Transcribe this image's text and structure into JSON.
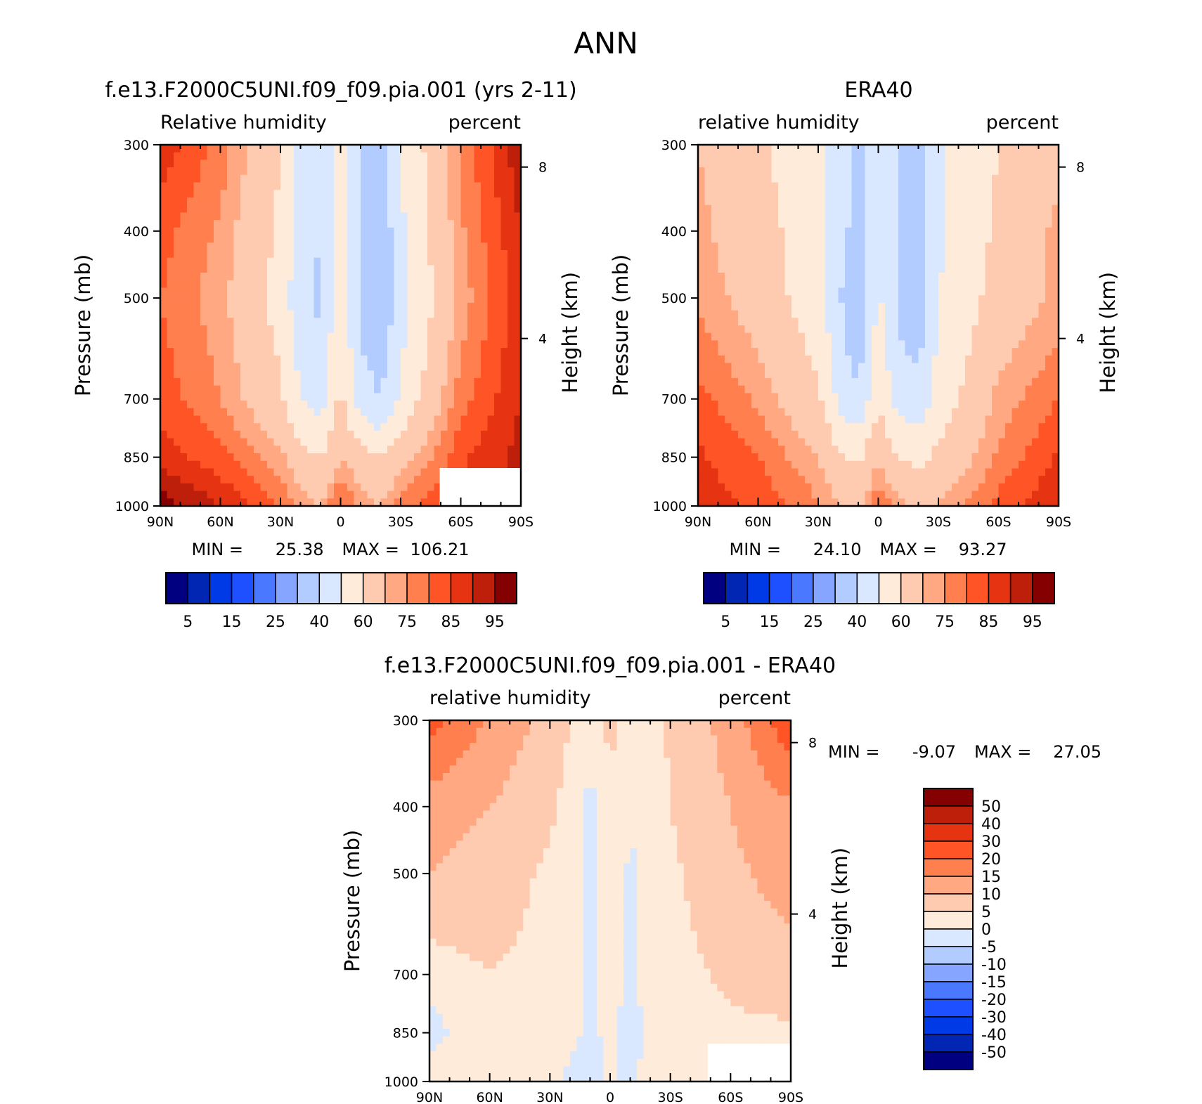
{
  "figure_title": "ANN",
  "colors": {
    "model_obs_levels": [
      "#000080",
      "#0026b3",
      "#0039e6",
      "#1f50ff",
      "#4a78ff",
      "#85a5ff",
      "#b3ccff",
      "#d9e8ff",
      "#ffebd9",
      "#ffcbb0",
      "#ffa882",
      "#ff7f4f",
      "#ff5526",
      "#e63311",
      "#bd1f0a",
      "#850000"
    ],
    "diff_levels": [
      "#000080",
      "#0026b3",
      "#0039e6",
      "#1f50ff",
      "#4a78ff",
      "#85a5ff",
      "#b3ccff",
      "#d9e8ff",
      "#ffebd9",
      "#ffcbb0",
      "#ffa882",
      "#ff7f4f",
      "#ff5526",
      "#e63311",
      "#bd1f0a",
      "#850000"
    ]
  },
  "chart_data": [
    {
      "type": "heatmap",
      "title": "f.e13.F2000C5UNI.f09_f09.pia.001 (yrs 2-11)",
      "left_label": "Relative humidity",
      "right_label": "percent",
      "ylabel": "Pressure (mb)",
      "ylabel_right": "Height (km)",
      "x_ticks": [
        "90N",
        "60N",
        "30N",
        "0",
        "30S",
        "60S",
        "90S"
      ],
      "y_ticks": [
        "300",
        "400",
        "500",
        "700",
        "850",
        "1000"
      ],
      "y_right_ticks": [
        "8",
        "4"
      ],
      "min_label": "MIN =",
      "min_value": "25.38",
      "max_label": "MAX =",
      "max_value": "106.21",
      "colorbar_labels": [
        "5",
        "15",
        "25",
        "40",
        "60",
        "75",
        "85",
        "95"
      ],
      "lat": [
        -90,
        -60,
        -30,
        -20,
        -10,
        0,
        10,
        20,
        30,
        60,
        90
      ],
      "pressure": [
        300,
        400,
        500,
        700,
        850,
        1000
      ],
      "values": [
        [
          88,
          78,
          60,
          48,
          42,
          57,
          40,
          34,
          50,
          76,
          94
        ],
        [
          82,
          74,
          58,
          45,
          40,
          57,
          38,
          32,
          48,
          74,
          90
        ],
        [
          80,
          72,
          56,
          43,
          38,
          58,
          37,
          30,
          46,
          72,
          88
        ],
        [
          83,
          75,
          62,
          50,
          46,
          62,
          45,
          40,
          52,
          78,
          90
        ],
        [
          88,
          82,
          72,
          64,
          60,
          70,
          64,
          60,
          66,
          84,
          92
        ],
        [
          98,
          90,
          80,
          74,
          70,
          82,
          74,
          70,
          78,
          86,
          90
        ]
      ]
    },
    {
      "type": "heatmap",
      "title": "ERA40",
      "left_label": "relative humidity",
      "right_label": "percent",
      "ylabel": "Pressure (mb)",
      "ylabel_right": "Height (km)",
      "x_ticks": [
        "90N",
        "60N",
        "30N",
        "0",
        "30S",
        "60S",
        "90S"
      ],
      "y_ticks": [
        "300",
        "400",
        "500",
        "700",
        "850",
        "1000"
      ],
      "y_right_ticks": [
        "8",
        "4"
      ],
      "min_label": "MIN =",
      "min_value": "24.10",
      "max_label": "MAX =",
      "max_value": "93.27",
      "colorbar_labels": [
        "5",
        "15",
        "25",
        "40",
        "60",
        "75",
        "85",
        "95"
      ],
      "lat": [
        -90,
        -60,
        -30,
        -20,
        -10,
        0,
        10,
        20,
        30,
        60,
        90
      ],
      "pressure": [
        300,
        400,
        500,
        700,
        850,
        1000
      ],
      "values": [
        [
          70,
          62,
          52,
          45,
          38,
          50,
          40,
          34,
          48,
          60,
          68
        ],
        [
          72,
          64,
          54,
          44,
          36,
          52,
          40,
          32,
          48,
          62,
          72
        ],
        [
          74,
          66,
          54,
          42,
          28,
          52,
          38,
          32,
          50,
          64,
          72
        ],
        [
          82,
          74,
          62,
          48,
          42,
          58,
          46,
          44,
          54,
          72,
          80
        ],
        [
          86,
          80,
          70,
          62,
          58,
          70,
          60,
          58,
          62,
          76,
          86
        ],
        [
          88,
          84,
          76,
          70,
          68,
          80,
          72,
          66,
          70,
          82,
          90
        ]
      ]
    },
    {
      "type": "heatmap",
      "title": "f.e13.F2000C5UNI.f09_f09.pia.001 - ERA40",
      "left_label": "relative humidity",
      "right_label": "percent",
      "ylabel": "Pressure (mb)",
      "ylabel_right": "Height (km)",
      "x_ticks": [
        "90N",
        "60N",
        "30N",
        "0",
        "30S",
        "60S",
        "90S"
      ],
      "y_ticks": [
        "300",
        "400",
        "500",
        "700",
        "850",
        "1000"
      ],
      "y_right_ticks": [
        "8",
        "4"
      ],
      "min_label": "MIN =",
      "min_value": "-9.07",
      "max_label": "MAX =",
      "max_value": "27.05",
      "colorbar_labels": [
        "50",
        "40",
        "30",
        "20",
        "15",
        "10",
        "5",
        "0",
        "-5",
        "-10",
        "-15",
        "-20",
        "-30",
        "-40",
        "-50"
      ],
      "lat": [
        -90,
        -60,
        -30,
        -20,
        -10,
        0,
        10,
        20,
        30,
        60,
        90
      ],
      "pressure": [
        300,
        400,
        500,
        700,
        850,
        1000
      ],
      "values": [
        [
          22,
          14,
          8,
          5,
          3,
          6,
          4,
          2,
          6,
          12,
          24
        ],
        [
          12,
          10,
          6,
          3,
          -2,
          4,
          1,
          2,
          5,
          10,
          14
        ],
        [
          10,
          8,
          4,
          2,
          -1,
          3,
          -1,
          1,
          4,
          9,
          12
        ],
        [
          2,
          5,
          3,
          2,
          -1,
          2,
          -1,
          2,
          3,
          6,
          8
        ],
        [
          -2,
          4,
          2,
          1,
          -1,
          1,
          -2,
          1,
          2,
          4,
          4
        ],
        [
          4,
          3,
          2,
          -1,
          -2,
          1,
          -1,
          2,
          3,
          5,
          4
        ]
      ]
    }
  ]
}
